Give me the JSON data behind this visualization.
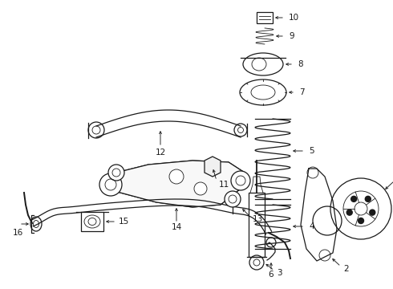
{
  "bg_color": "#ffffff",
  "line_color": "#1a1a1a",
  "label_color": "#000000",
  "fig_width": 4.9,
  "fig_height": 3.6,
  "dpi": 100,
  "font_size": 7.5,
  "lw": 0.9
}
